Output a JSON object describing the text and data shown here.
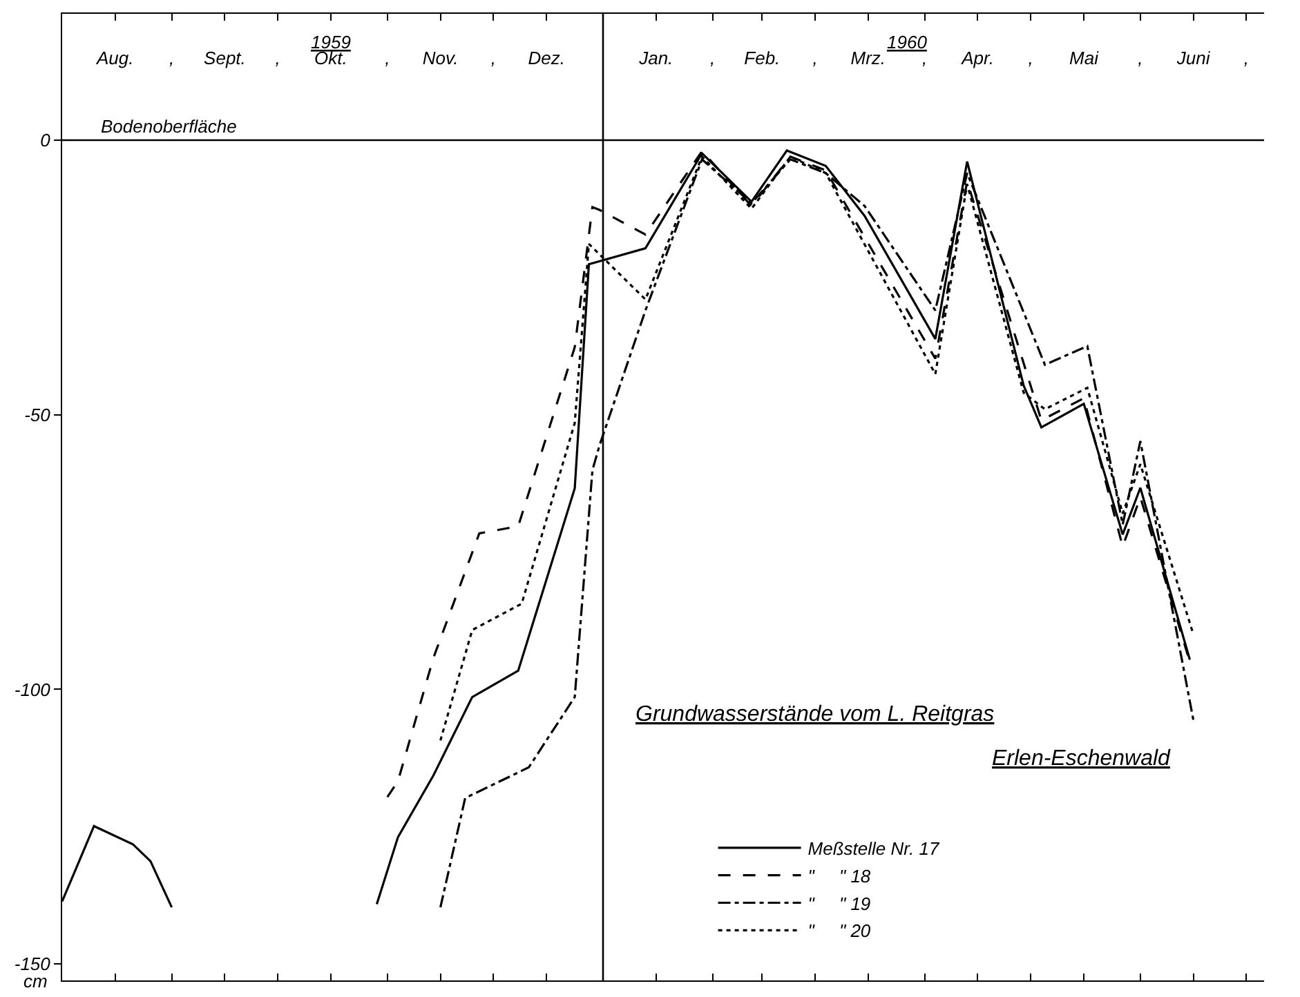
{
  "chart_data": {
    "type": "line",
    "title": "Grundwasserstände vom L. Reitgras\nErlen-Eschenwald",
    "ylabel": "cm",
    "annotations": [
      "1959",
      "1960"
    ],
    "xlim": [
      "1959-08-01",
      "1960-07-06"
    ],
    "xticks": [
      {
        "value": "1959-08-16",
        "label": "Aug."
      },
      {
        "value": "1959-09-01",
        "label": ","
      },
      {
        "value": "1959-09-16",
        "label": "Sept."
      },
      {
        "value": "1959-10-01",
        "label": ","
      },
      {
        "value": "1959-10-16",
        "label": "Okt."
      },
      {
        "value": "1959-11-01",
        "label": ","
      },
      {
        "value": "1959-11-16",
        "label": "Nov."
      },
      {
        "value": "1959-12-01",
        "label": ","
      },
      {
        "value": "1959-12-16",
        "label": "Dez."
      },
      {
        "value": "1960-01-16",
        "label": "Jan."
      },
      {
        "value": "1960-02-01",
        "label": ","
      },
      {
        "value": "1960-02-15",
        "label": "Feb."
      },
      {
        "value": "1960-03-01",
        "label": ","
      },
      {
        "value": "1960-03-16",
        "label": "Mrz."
      },
      {
        "value": "1960-04-01",
        "label": ","
      },
      {
        "value": "1960-04-16",
        "label": "Apr."
      },
      {
        "value": "1960-05-01",
        "label": ","
      },
      {
        "value": "1960-05-16",
        "label": "Mai"
      },
      {
        "value": "1960-06-01",
        "label": ","
      },
      {
        "value": "1960-06-16",
        "label": "Juni"
      },
      {
        "value": "1960-07-01",
        "label": ","
      }
    ],
    "ylim": [
      -153,
      23
    ],
    "yticks": [
      0,
      -50,
      -100,
      -150
    ],
    "grid": false,
    "legend": "bottom",
    "ref_lines": [
      {
        "axis": "y",
        "value": 0,
        "label": "Bodenoberfläche"
      },
      {
        "axis": "x",
        "value": "1960-01-01"
      }
    ],
    "series": [
      {
        "name": "Meßstelle Nr. 17",
        "color": "#000000",
        "line_style": "solid",
        "x": [
          "1959-08-01",
          "1959-08-10",
          "1959-08-21",
          "1959-08-26",
          "1959-09-01",
          "1959-10-01",
          "1959-10-29",
          "1959-11-04",
          "1959-11-14",
          "1959-11-25",
          "1959-12-08",
          "1959-12-24",
          "1959-12-28",
          "1960-01-13",
          "1960-01-29",
          "1960-02-12",
          "1960-02-22",
          "1960-03-04",
          "1960-03-15",
          "1960-04-04",
          "1960-04-13",
          "1960-04-29",
          "1960-05-04",
          "1960-05-16",
          "1960-05-27",
          "1960-06-01",
          "1960-06-15"
        ],
        "values": [
          -138.6,
          -124.9,
          -128.2,
          -131.3,
          -139.7,
          null,
          -139.1,
          -126.9,
          -115.7,
          -101.4,
          -96.6,
          -63.4,
          -22.6,
          -19.7,
          -2.4,
          -11.2,
          -1.9,
          -4.7,
          -13.8,
          -36.2,
          -3.9,
          -44.7,
          -52.3,
          -48.0,
          -71.8,
          -63.3,
          -94.6
        ]
      },
      {
        "name": "\"     \" 18",
        "color": "#000000",
        "line_style": "dashed",
        "x": [
          "1959-11-01",
          "1959-11-04",
          "1959-11-14",
          "1959-11-27",
          "1959-12-08",
          "1959-12-24",
          "1959-12-29",
          "1959-12-31",
          "1960-01-13",
          "1960-01-29",
          "1960-02-12",
          "1960-02-23",
          "1960-03-04",
          "1960-04-04",
          "1960-04-13",
          "1960-05-04",
          "1960-05-16",
          "1960-05-27",
          "1960-06-01",
          "1960-06-15"
        ],
        "values": [
          -119.6,
          -116.7,
          -94.3,
          -71.6,
          -70.3,
          -37.7,
          -12.2,
          -12.7,
          -17.2,
          -2.0,
          -12.0,
          -3.0,
          -5.5,
          -39.8,
          -7.5,
          -51.0,
          -47.0,
          -74.0,
          -65.0,
          -95.0
        ]
      },
      {
        "name": "\"     \" 19",
        "color": "#000000",
        "line_style": "dashdot",
        "x": [
          "1959-11-16",
          "1959-11-23",
          "1959-12-11",
          "1959-12-24",
          "1959-12-29",
          "1959-12-31",
          "1960-01-13",
          "1960-01-29",
          "1960-02-12",
          "1960-02-23",
          "1960-03-04",
          "1960-03-15",
          "1960-04-04",
          "1960-04-13",
          "1960-05-05",
          "1960-05-17",
          "1960-05-27",
          "1960-06-01",
          "1960-06-16"
        ],
        "values": [
          -139.7,
          -119.8,
          -114.2,
          -101.4,
          -60.1,
          -55.6,
          -31.0,
          -3.5,
          -11.5,
          -3.5,
          -6.0,
          -12.0,
          -31.0,
          -6.0,
          -40.9,
          -37.5,
          -70.0,
          -54.8,
          -105.6
        ]
      },
      {
        "name": "\"     \" 20",
        "color": "#000000",
        "line_style": "dotted",
        "x": [
          "1959-11-16",
          "1959-11-25",
          "1959-12-09",
          "1959-12-24",
          "1959-12-28",
          "1960-01-13",
          "1960-01-29",
          "1960-02-12",
          "1960-02-23",
          "1960-03-04",
          "1960-04-04",
          "1960-04-13",
          "1960-04-29",
          "1960-05-05",
          "1960-05-17",
          "1960-05-27",
          "1960-06-01",
          "1960-06-16"
        ],
        "values": [
          -109.3,
          -89.2,
          -84.4,
          -51.5,
          -18.9,
          -29.0,
          -3.0,
          -12.5,
          -3.0,
          -6.0,
          -42.6,
          -8.0,
          -46.0,
          -49.0,
          -45.1,
          -68.0,
          -59.0,
          -90.0
        ]
      }
    ]
  }
}
